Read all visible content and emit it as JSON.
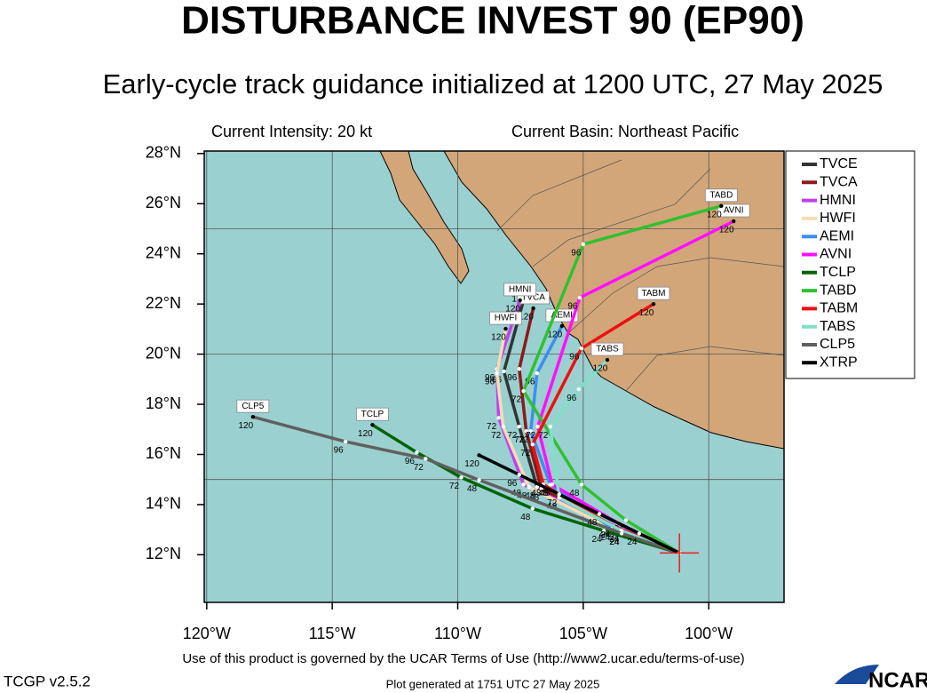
{
  "chart_data": {
    "type": "track",
    "title": "DISTURBANCE INVEST 90 (EP90)",
    "subtitle": "Early-cycle track guidance initialized at 1200 UTC, 27 May 2025",
    "intensity": "Current Intensity: 20 kt",
    "basin": "Current Basin: Northeast Pacific",
    "xlim": [
      -120.1,
      -97.0
    ],
    "ylim": [
      10.1,
      28.1
    ],
    "xticks": [
      {
        "value": -120,
        "label": "120°W"
      },
      {
        "value": -115,
        "label": "115°W"
      },
      {
        "value": -110,
        "label": "110°W"
      },
      {
        "value": -105,
        "label": "105°W"
      },
      {
        "value": -100,
        "label": "100°W"
      }
    ],
    "yticks": [
      {
        "value": 12,
        "label": "12°N"
      },
      {
        "value": 14,
        "label": "14°N"
      },
      {
        "value": 16,
        "label": "16°N"
      },
      {
        "value": 18,
        "label": "18°N"
      },
      {
        "value": 20,
        "label": "20°N"
      },
      {
        "value": 22,
        "label": "22°N"
      },
      {
        "value": 24,
        "label": "24°N"
      },
      {
        "value": 26,
        "label": "26°N"
      },
      {
        "value": 28,
        "label": "28°N"
      }
    ],
    "ygrid": [
      15,
      20,
      25
    ],
    "label_hours": [
      24,
      48,
      72,
      96,
      120
    ],
    "legend": "upper right",
    "series": [
      {
        "name": "TVCE",
        "color": "#333333",
        "end_tag": false,
        "lon": [
          -101.17,
          -103.83,
          -106.84,
          -107.55,
          -108.16,
          -107.27
        ],
        "lat": [
          12.07,
          13.14,
          14.7,
          17.11,
          19.31,
          22.54
        ]
      },
      {
        "name": "TVCA",
        "color": "#8b1a1a",
        "end_tag": true,
        "lon": [
          -101.17,
          -103.9,
          -106.67,
          -107.27,
          -107.55,
          -106.99
        ],
        "lat": [
          12.07,
          13.21,
          14.63,
          16.93,
          19.41,
          21.83
        ]
      },
      {
        "name": "HMNI",
        "color": "#c040f0",
        "end_tag": true,
        "lon": [
          -101.17,
          -103.48,
          -107.38,
          -108.37,
          -108.44,
          -107.52
        ],
        "lat": [
          12.07,
          13.03,
          14.8,
          17.46,
          19.41,
          22.15
        ]
      },
      {
        "name": "HWFI",
        "color": "#f5deb3",
        "end_tag": true,
        "lon": [
          -101.17,
          -103.48,
          -107.16,
          -108.19,
          -108.44,
          -108.09
        ],
        "lat": [
          12.07,
          12.85,
          14.7,
          17.11,
          19.24,
          21.01
        ]
      },
      {
        "name": "AEMI",
        "color": "#3c8ff0",
        "end_tag": true,
        "lon": [
          -101.17,
          -103.83,
          -106.31,
          -107.09,
          -106.84,
          -105.85
        ],
        "lat": [
          12.07,
          13.03,
          14.8,
          16.93,
          19.24,
          21.12
        ]
      },
      {
        "name": "AVNI",
        "color": "#ff10ff",
        "end_tag": true,
        "lon": [
          -101.17,
          -103.65,
          -106.24,
          -106.81,
          -105.14,
          -99.01
        ],
        "lat": [
          12.07,
          13.28,
          14.8,
          17.11,
          22.25,
          25.3
        ]
      },
      {
        "name": "TCLP",
        "color": "#006400",
        "end_tag": true,
        "lon": [
          -101.17,
          -104.18,
          -107.02,
          -109.86,
          -111.63,
          -113.4
        ],
        "lat": [
          12.07,
          12.96,
          13.84,
          15.08,
          16.08,
          17.18
        ]
      },
      {
        "name": "TABD",
        "color": "#30c030",
        "end_tag": true,
        "lon": [
          -101.17,
          -103.3,
          -105.07,
          -107.38,
          -105.0,
          -99.5
        ],
        "lat": [
          12.07,
          13.38,
          14.8,
          18.53,
          24.38,
          25.91
        ]
      },
      {
        "name": "TABM",
        "color": "#ee1010",
        "end_tag": true,
        "lon": [
          -101.17,
          -103.83,
          -106.59,
          -107.02,
          -105.07,
          -102.2
        ],
        "lat": [
          12.07,
          13.14,
          14.8,
          16.4,
          20.23,
          22.0
        ]
      },
      {
        "name": "TABS",
        "color": "#7fe0c8",
        "end_tag": true,
        "lon": [
          -101.17,
          -103.48,
          -105.96,
          -106.31,
          -105.18,
          -104.04
        ],
        "lat": [
          12.07,
          12.96,
          14.27,
          17.11,
          18.6,
          19.77
        ]
      },
      {
        "name": "CLP5",
        "color": "#606060",
        "end_tag": true,
        "lon": [
          -101.17,
          -103.47,
          -109.15,
          -111.28,
          -114.47,
          -118.16
        ],
        "lat": [
          12.07,
          12.85,
          14.98,
          15.83,
          16.51,
          17.5
        ]
      },
      {
        "name": "XTRP",
        "color": "#000000",
        "end_tag": false,
        "lon": [
          -101.17,
          -102.77,
          -104.36,
          -105.96,
          -107.55,
          -109.15
        ],
        "lat": [
          12.07,
          12.85,
          13.63,
          14.41,
          15.19,
          15.97
        ]
      }
    ],
    "footer": "Use of this product is governed by the UCAR Terms of Use (http://www2.ucar.edu/terms-of-use)",
    "version": "TCGP v2.5.2",
    "generated": "Plot generated at 1751 UTC  27 May 2025",
    "logo": "NCAR"
  }
}
